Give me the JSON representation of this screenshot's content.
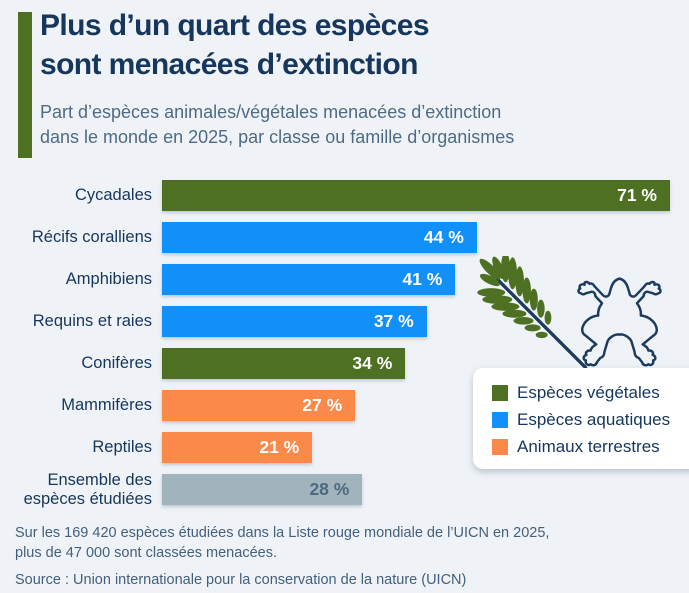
{
  "background": "#eff3f7",
  "header": {
    "title_lines": [
      "Plus d’un quart des espèces",
      "sont menacées d’extinction"
    ],
    "subtitle_lines": [
      "Part d’espèces animales/végétales menacées d’extinction",
      "dans le monde en 2025, par classe ou famille d’organismes"
    ]
  },
  "palette": {
    "vegetal": "#4d7022",
    "aquatic": "#1190fa",
    "terrestrial": "#fb8a4a",
    "all": "#a1b4bd"
  },
  "text_colors": {
    "title": "#16365c",
    "subtitle": "#4e6b85",
    "footer": "#44607c",
    "value_on_gray": "#4d6a82"
  },
  "chart_data": {
    "type": "bar",
    "orientation": "horizontal",
    "unit": "%",
    "xlim": [
      0,
      71
    ],
    "grid": false,
    "legend_position": "right",
    "rows": [
      {
        "category": "Cycadales",
        "value": 71,
        "display": "71 %",
        "group": "vegetal"
      },
      {
        "category": "Récifs coralliens",
        "value": 44,
        "display": "44 %",
        "group": "aquatic"
      },
      {
        "category": "Amphibiens",
        "value": 41,
        "display": "41 %",
        "group": "aquatic"
      },
      {
        "category": "Requins et raies",
        "value": 37,
        "display": "37 %",
        "group": "aquatic"
      },
      {
        "category": "Conifères",
        "value": 34,
        "display": "34 %",
        "group": "vegetal"
      },
      {
        "category": "Mammifères",
        "value": 27,
        "display": "27 %",
        "group": "terrestrial"
      },
      {
        "category": "Reptiles",
        "value": 21,
        "display": "21 %",
        "group": "terrestrial"
      },
      {
        "category": "Ensemble des espèces étudiées",
        "value": 28,
        "display": "28 %",
        "group": "all",
        "label_lines": [
          "Ensemble des",
          "espèces étudiées"
        ]
      }
    ],
    "legend": [
      {
        "label": "Espèces végétales",
        "group": "vegetal"
      },
      {
        "label": "Espèces aquatiques",
        "group": "aquatic"
      },
      {
        "label": "Animaux terrestres",
        "group": "terrestrial"
      }
    ]
  },
  "footer": {
    "note_lines": [
      "Sur les 169 420 espèces étudiées dans la Liste rouge mondiale de l’UICN en 2025,",
      "plus de 47 000 sont classées menacées."
    ],
    "source": "Source : Union internationale pour la conservation de la nature (UICN)"
  },
  "decorations": {
    "fern_icon": "fern-leaf",
    "frog_icon": "frog-outline"
  }
}
